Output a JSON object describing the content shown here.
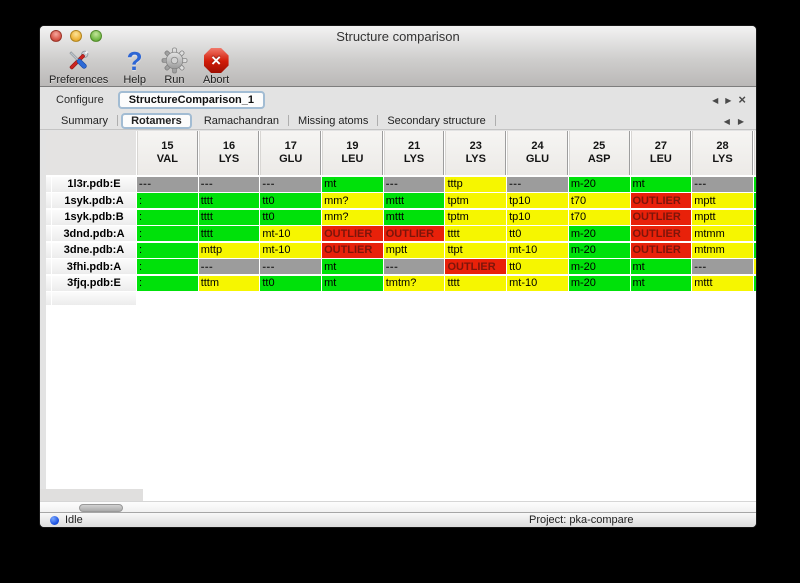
{
  "window": {
    "title": "Structure comparison"
  },
  "toolbar": [
    {
      "id": "preferences",
      "label": "Preferences",
      "icon": "tools-icon"
    },
    {
      "id": "help",
      "label": "Help",
      "icon": "help-icon"
    },
    {
      "id": "run",
      "label": "Run",
      "icon": "gear-icon"
    },
    {
      "id": "abort",
      "label": "Abort",
      "icon": "abort-icon"
    }
  ],
  "configure": {
    "label": "Configure",
    "instance": "StructureComparison_1"
  },
  "tabs": {
    "items": [
      "Summary",
      "Rotamers",
      "Ramachandran",
      "Missing atoms",
      "Secondary structure"
    ],
    "selected": "Rotamers"
  },
  "table": {
    "columns": [
      [
        "15",
        "VAL"
      ],
      [
        "16",
        "LYS"
      ],
      [
        "17",
        "GLU"
      ],
      [
        "19",
        "LEU"
      ],
      [
        "21",
        "LYS"
      ],
      [
        "23",
        "LYS"
      ],
      [
        "24",
        "GLU"
      ],
      [
        "25",
        "ASP"
      ],
      [
        "27",
        "LEU"
      ],
      [
        "28",
        "LYS"
      ]
    ],
    "rows": [
      {
        "label": "1l3r.pdb:E",
        "cells": [
          [
            "---",
            "na"
          ],
          [
            "---",
            "na"
          ],
          [
            "---",
            "na"
          ],
          [
            "mt",
            "ok"
          ],
          [
            "---",
            "na"
          ],
          [
            "tttp",
            "warn"
          ],
          [
            "---",
            "na"
          ],
          [
            "m-20",
            "ok"
          ],
          [
            "mt",
            "ok"
          ],
          [
            "---",
            "na"
          ]
        ],
        "clipped": "ok"
      },
      {
        "label": "1syk.pdb:A",
        "cells": [
          [
            ":",
            "ok"
          ],
          [
            "tttt",
            "ok"
          ],
          [
            "tt0",
            "ok"
          ],
          [
            "mm?",
            "warn"
          ],
          [
            "mttt",
            "ok"
          ],
          [
            "tptm",
            "warn"
          ],
          [
            "tp10",
            "warn"
          ],
          [
            "t70",
            "warn"
          ],
          [
            "OUTLIER",
            "out"
          ],
          [
            "mptt",
            "warn"
          ]
        ],
        "clipped": "ok"
      },
      {
        "label": "1syk.pdb:B",
        "cells": [
          [
            ":",
            "ok"
          ],
          [
            "tttt",
            "ok"
          ],
          [
            "tt0",
            "ok"
          ],
          [
            "mm?",
            "warn"
          ],
          [
            "mttt",
            "ok"
          ],
          [
            "tptm",
            "warn"
          ],
          [
            "tp10",
            "warn"
          ],
          [
            "t70",
            "warn"
          ],
          [
            "OUTLIER",
            "out"
          ],
          [
            "mptt",
            "warn"
          ]
        ],
        "clipped": "ok"
      },
      {
        "label": "3dnd.pdb:A",
        "cells": [
          [
            ":",
            "ok"
          ],
          [
            "tttt",
            "ok"
          ],
          [
            "mt-10",
            "warn"
          ],
          [
            "OUTLIER",
            "out"
          ],
          [
            "OUTLIER",
            "out"
          ],
          [
            "tttt",
            "warn"
          ],
          [
            "tt0",
            "warn"
          ],
          [
            "m-20",
            "ok"
          ],
          [
            "OUTLIER",
            "out"
          ],
          [
            "mtmm",
            "warn"
          ]
        ],
        "clipped": "ok"
      },
      {
        "label": "3dne.pdb:A",
        "cells": [
          [
            ":",
            "ok"
          ],
          [
            "mttp",
            "warn"
          ],
          [
            "mt-10",
            "warn"
          ],
          [
            "OUTLIER",
            "out"
          ],
          [
            "mptt",
            "warn"
          ],
          [
            "ttpt",
            "warn"
          ],
          [
            "mt-10",
            "warn"
          ],
          [
            "m-20",
            "ok"
          ],
          [
            "OUTLIER",
            "out"
          ],
          [
            "mtmm",
            "warn"
          ]
        ],
        "clipped": "ok"
      },
      {
        "label": "3fhi.pdb:A",
        "cells": [
          [
            ":",
            "ok"
          ],
          [
            "---",
            "na"
          ],
          [
            "---",
            "na"
          ],
          [
            "mt",
            "ok"
          ],
          [
            "---",
            "na"
          ],
          [
            "OUTLIER",
            "out"
          ],
          [
            "tt0",
            "warn"
          ],
          [
            "m-20",
            "ok"
          ],
          [
            "mt",
            "ok"
          ],
          [
            "---",
            "na"
          ]
        ],
        "clipped": "warn"
      },
      {
        "label": "3fjq.pdb:E",
        "cells": [
          [
            ":",
            "ok"
          ],
          [
            "tttm",
            "warn"
          ],
          [
            "tt0",
            "ok"
          ],
          [
            "mt",
            "ok"
          ],
          [
            "tmtm?",
            "warn"
          ],
          [
            "tttt",
            "warn"
          ],
          [
            "mt-10",
            "warn"
          ],
          [
            "m-20",
            "ok"
          ],
          [
            "mt",
            "ok"
          ],
          [
            "mttt",
            "warn"
          ]
        ],
        "clipped": "ok"
      }
    ]
  },
  "statusbar": {
    "state": "Idle",
    "project": "Project: pka-compare"
  },
  "colors": {
    "ok": "#00e10a",
    "warn": "#f6f600",
    "out": "#e8210a",
    "na": "#9c9c9c",
    "outlier_text": "#7c150a",
    "na_text": "#303030"
  }
}
